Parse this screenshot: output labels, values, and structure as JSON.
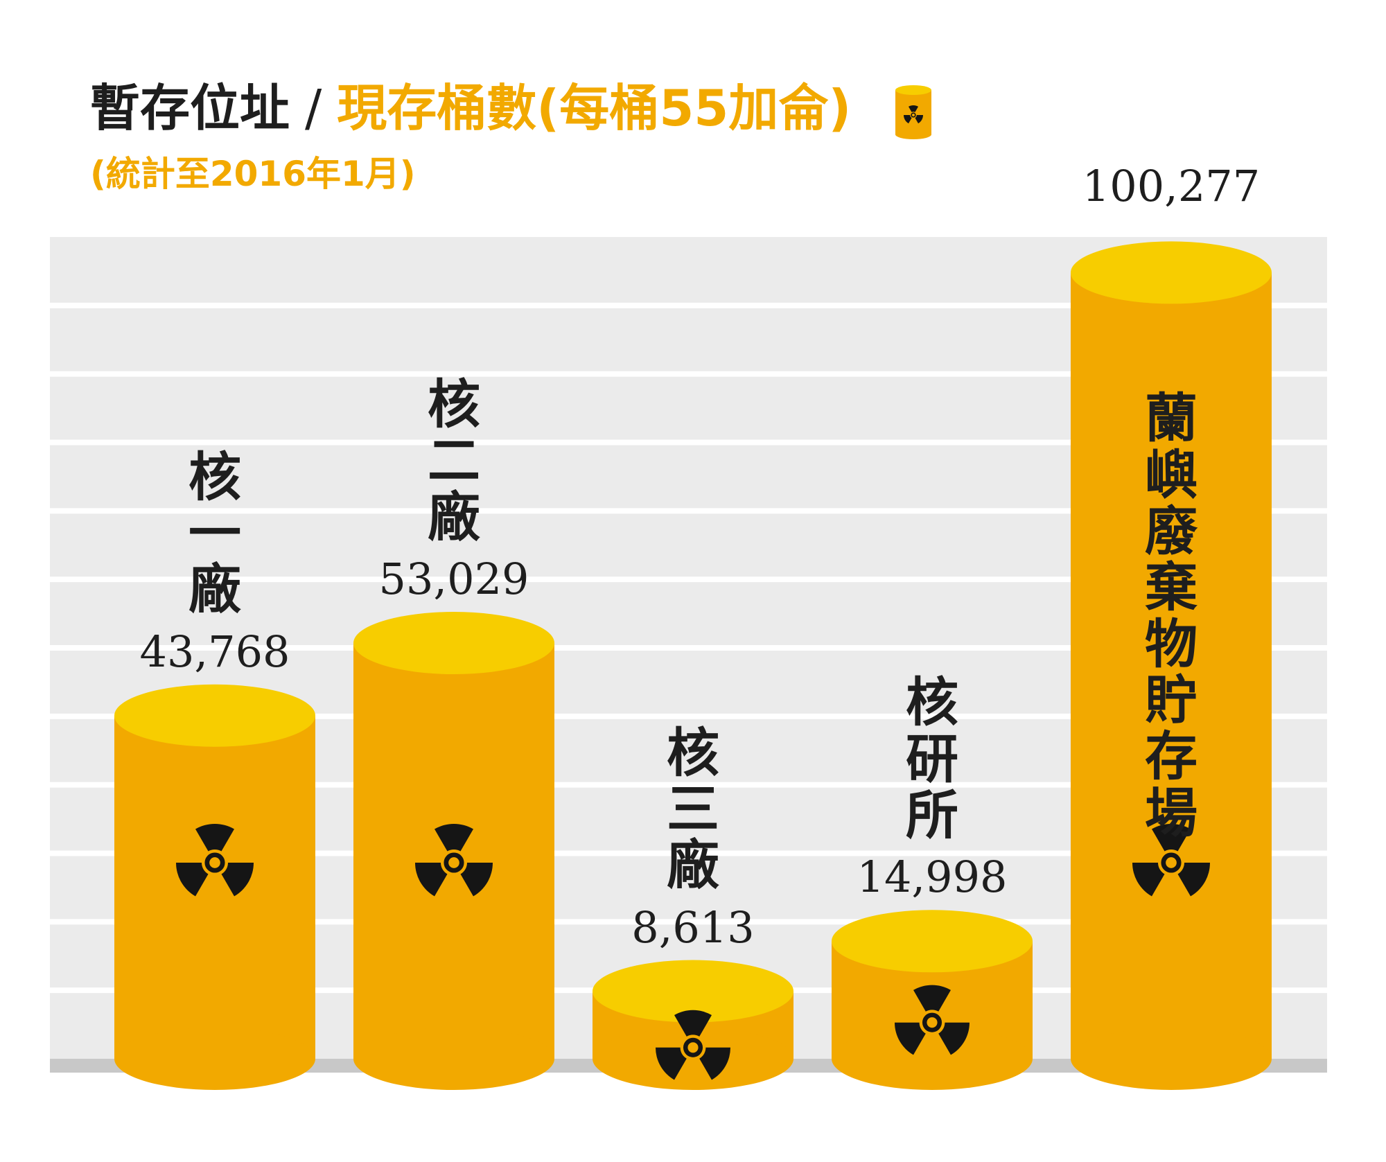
{
  "header": {
    "title_part1": "暫存位址",
    "separator": "/",
    "title_part2": "現存桶數(每桶55加侖)",
    "subtitle": "(統計至2016年1月)",
    "title_icon": "radiation-barrel-icon"
  },
  "colors": {
    "barrel_body": "#f2a900",
    "barrel_top": "#f7cd00",
    "grid_band": "#ebebeb",
    "grid_line": "#ffffff",
    "baseline": "#c8c8c8",
    "symbol": "#151515",
    "text": "#1e1e1e",
    "accent": "#f2a900"
  },
  "chart_data": {
    "type": "bar",
    "style": "3d-barrel-bars",
    "title": "暫存位址 / 現存桶數(每桶55加侖)",
    "subtitle": "(統計至2016年1月)",
    "categories": [
      "核一廠",
      "核二廠",
      "核三廠",
      "核研所",
      "蘭嶼廢棄物貯存場"
    ],
    "values": [
      43768,
      53029,
      8613,
      14998,
      100277
    ],
    "value_labels": [
      "43,768",
      "53,029",
      "8,613",
      "14,998",
      "100,277"
    ],
    "label_inside_bar": [
      false,
      false,
      false,
      false,
      true
    ],
    "ylim": [
      0,
      105000
    ],
    "grid": true,
    "legend": "none",
    "bar_icon": "radiation-icon"
  }
}
